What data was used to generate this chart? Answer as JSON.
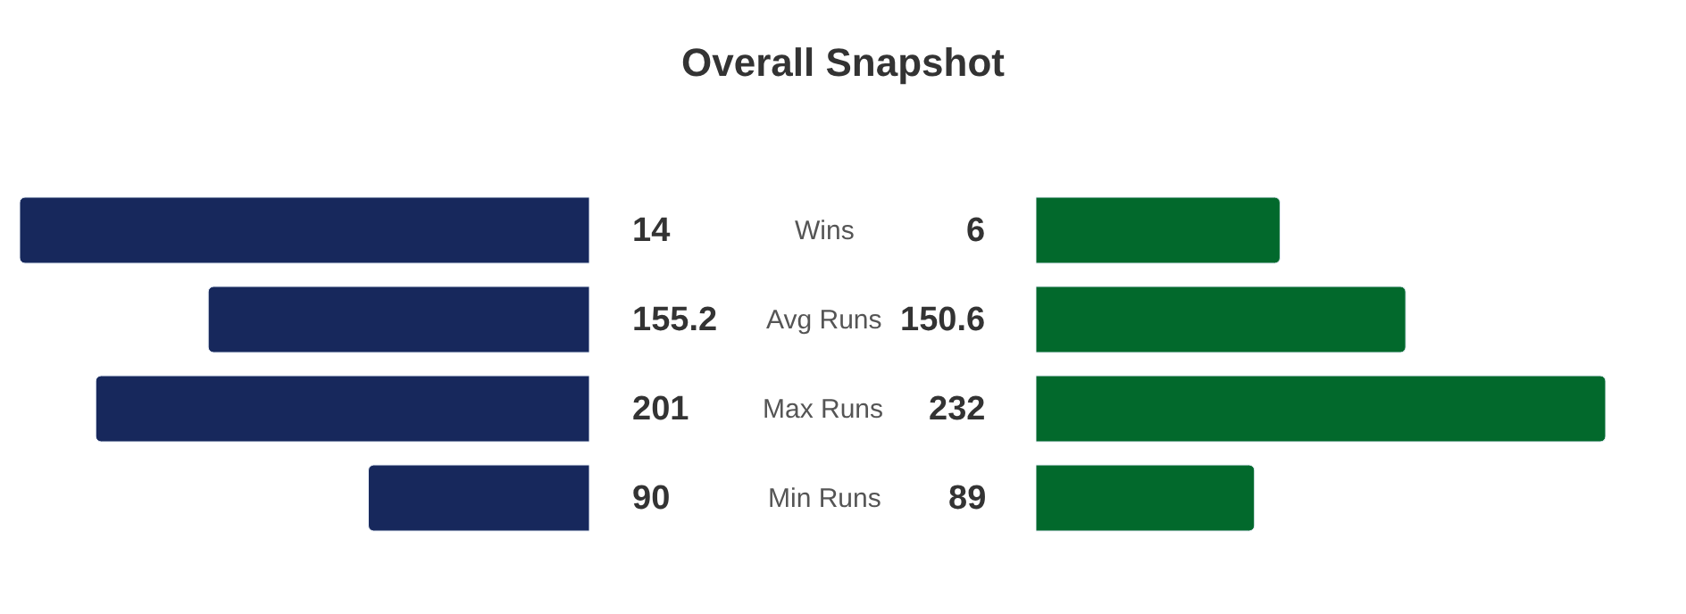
{
  "chart_data": [
    {
      "type": "other",
      "title": "Overall Snapshot"
    },
    {
      "type": "bar",
      "orientation": "horizontal",
      "data_labels": true,
      "tick_labels": "y",
      "categories": [
        "Wins"
      ],
      "series": [
        {
          "color": "#17285c",
          "values": [
            14
          ]
        }
      ]
    },
    {
      "type": "bar",
      "orientation": "horizontal",
      "data_labels": true,
      "tick_labels": false,
      "categories": [
        null
      ],
      "series": [
        {
          "color": "#02692c",
          "values": [
            6
          ]
        }
      ]
    },
    {
      "type": "bar",
      "orientation": "horizontal",
      "data_labels": true,
      "tick_labels": "y",
      "categories": [
        "Avg Runs",
        "Max Runs",
        "Min Runs"
      ],
      "series": [
        {
          "color": "#17285c",
          "values": [
            155.2,
            201,
            90
          ]
        }
      ]
    },
    {
      "type": "bar",
      "orientation": "horizontal",
      "data_labels": true,
      "tick_labels": false,
      "categories": [
        null,
        null,
        null
      ],
      "series": [
        {
          "color": "#02692c",
          "values": [
            150.6,
            232,
            89
          ]
        }
      ]
    }
  ]
}
